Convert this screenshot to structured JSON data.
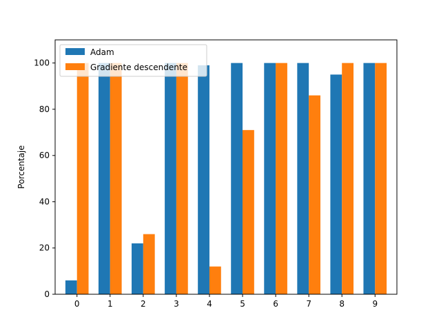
{
  "chart_data": {
    "type": "bar",
    "title": "",
    "xlabel": "",
    "ylabel": "Porcentaje",
    "categories": [
      "0",
      "1",
      "2",
      "3",
      "4",
      "5",
      "6",
      "7",
      "8",
      "9"
    ],
    "series": [
      {
        "name": "Adam",
        "color": "#1f77b4",
        "values": [
          6,
          100,
          22,
          100,
          99,
          100,
          100,
          100,
          95,
          100
        ]
      },
      {
        "name": "Gradiente descendente",
        "color": "#ff7f0e",
        "values": [
          100,
          100,
          26,
          100,
          12,
          71,
          100,
          86,
          100,
          100
        ]
      }
    ],
    "ylim": [
      0,
      110
    ],
    "yticks": [
      0,
      20,
      40,
      60,
      80,
      100
    ],
    "grid": false,
    "legend": "top-left"
  }
}
